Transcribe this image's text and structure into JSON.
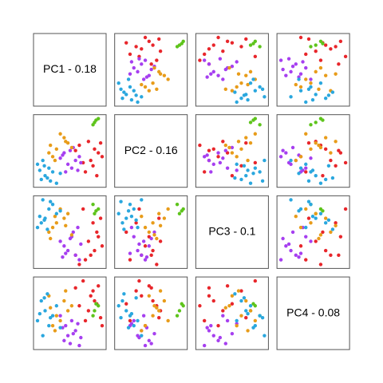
{
  "chart_data": {
    "type": "scatter_matrix",
    "variables": [
      "PC1 - 0.18",
      "PC2 - 0.16",
      "PC3 - 0.1",
      "PC4 - 0.08"
    ],
    "series": [
      {
        "color": "#e8262b",
        "points": [
          [
            0.25,
            -0.05,
            -0.3,
            0.2
          ],
          [
            0.3,
            0.1,
            -0.25,
            0.15
          ],
          [
            0.18,
            -0.2,
            -0.35,
            -0.05
          ],
          [
            0.35,
            0.05,
            -0.1,
            0.3
          ],
          [
            0.1,
            0.15,
            -0.4,
            0.1
          ],
          [
            0.28,
            -0.12,
            0.05,
            0.25
          ],
          [
            0.4,
            0.0,
            -0.2,
            -0.1
          ],
          [
            0.22,
            0.2,
            -0.15,
            0.05
          ],
          [
            0.15,
            -0.08,
            0.2,
            0.35
          ],
          [
            0.33,
            -0.25,
            -0.05,
            0.12
          ],
          [
            0.05,
            0.08,
            -0.3,
            0.28
          ],
          [
            0.38,
            0.18,
            0.1,
            -0.02
          ]
        ]
      },
      {
        "color": "#5ec41c",
        "points": [
          [
            0.3,
            0.45,
            0.15,
            0.05
          ],
          [
            0.35,
            0.5,
            0.2,
            0.1
          ],
          [
            0.28,
            0.42,
            0.25,
            0.0
          ],
          [
            0.32,
            0.48,
            0.18,
            0.12
          ]
        ]
      },
      {
        "color": "#a63ff0",
        "points": [
          [
            -0.05,
            -0.1,
            -0.25,
            -0.2
          ],
          [
            0.05,
            -0.05,
            -0.3,
            -0.15
          ],
          [
            -0.1,
            0.05,
            -0.2,
            -0.25
          ],
          [
            0.0,
            -0.15,
            -0.1,
            -0.05
          ],
          [
            0.1,
            0.0,
            -0.35,
            -0.3
          ],
          [
            -0.15,
            -0.02,
            -0.15,
            0.0
          ],
          [
            0.02,
            0.12,
            -0.05,
            -0.18
          ],
          [
            -0.08,
            -0.2,
            -0.28,
            -0.1
          ],
          [
            0.12,
            -0.08,
            -0.18,
            -0.22
          ],
          [
            -0.02,
            0.08,
            -0.12,
            -0.28
          ],
          [
            0.08,
            -0.18,
            0.0,
            -0.08
          ],
          [
            -0.12,
            0.02,
            -0.32,
            -0.12
          ]
        ]
      },
      {
        "color": "#e89c1a",
        "points": [
          [
            -0.2,
            0.1,
            0.05,
            0.0
          ],
          [
            -0.1,
            0.25,
            0.1,
            0.15
          ],
          [
            -0.25,
            0.0,
            0.0,
            -0.1
          ],
          [
            -0.05,
            0.18,
            0.15,
            0.05
          ],
          [
            -0.3,
            0.05,
            -0.05,
            0.2
          ],
          [
            -0.15,
            0.3,
            0.2,
            -0.05
          ],
          [
            0.0,
            0.12,
            -0.08,
            0.1
          ],
          [
            -0.22,
            -0.05,
            0.12,
            -0.15
          ],
          [
            -0.08,
            0.2,
            0.02,
            0.25
          ],
          [
            -0.28,
            0.15,
            -0.12,
            0.08
          ]
        ]
      },
      {
        "color": "#2aa7de",
        "points": [
          [
            -0.35,
            -0.25,
            0.1,
            0.05
          ],
          [
            -0.3,
            -0.15,
            0.2,
            -0.1
          ],
          [
            -0.4,
            -0.3,
            0.05,
            0.15
          ],
          [
            -0.25,
            -0.2,
            0.25,
            0.0
          ],
          [
            -0.45,
            -0.1,
            0.0,
            -0.05
          ],
          [
            -0.2,
            -0.35,
            0.15,
            0.1
          ],
          [
            -0.38,
            -0.05,
            0.3,
            -0.2
          ],
          [
            -0.32,
            -0.28,
            -0.02,
            0.22
          ],
          [
            -0.15,
            -0.22,
            0.18,
            -0.12
          ],
          [
            -0.42,
            -0.18,
            0.12,
            0.02
          ],
          [
            -0.28,
            -0.32,
            0.28,
            -0.02
          ],
          [
            -0.36,
            -0.12,
            0.08,
            0.18
          ]
        ]
      }
    ]
  }
}
